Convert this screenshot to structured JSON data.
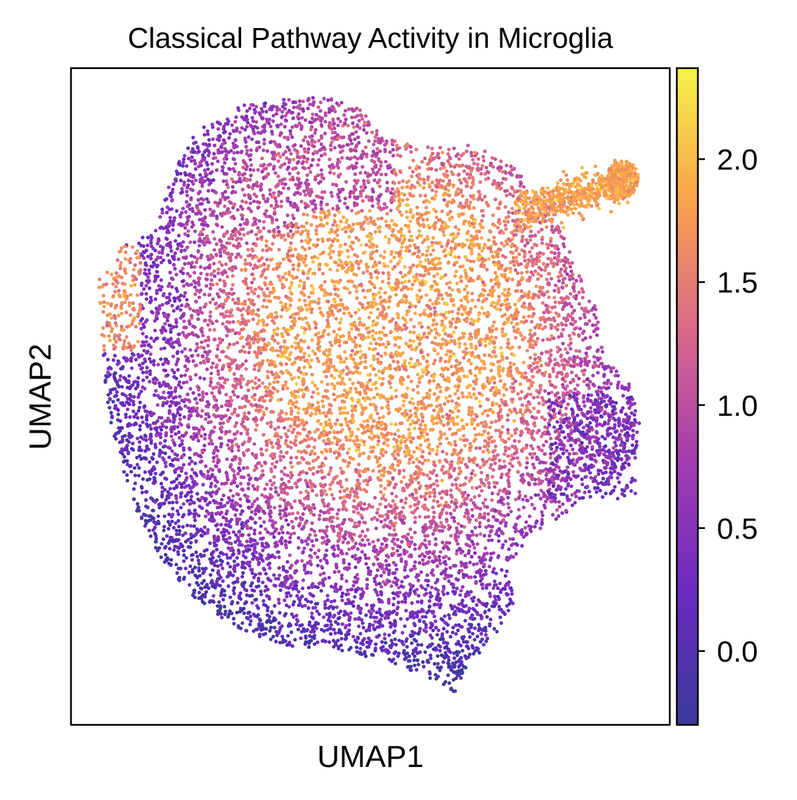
{
  "chart_data": {
    "type": "scatter",
    "title": "Classical Pathway Activity in Microglia",
    "xlabel": "UMAP1",
    "ylabel": "UMAP2",
    "colorbar": {
      "colormap": "plasma",
      "range": [
        -0.3,
        2.37
      ],
      "ticks": [
        0.0,
        0.5,
        1.0,
        1.5,
        2.0
      ],
      "tick_labels": [
        "0.0",
        "0.5",
        "1.0",
        "1.5",
        "2.0"
      ],
      "colors": [
        "#0d0887",
        "#6a00a8",
        "#b12a90",
        "#e16462",
        "#fca636",
        "#f0f921"
      ]
    },
    "axis_ticks_shown": false,
    "grid": false,
    "regions": [
      {
        "region": "central-core",
        "value": 1.75
      },
      {
        "region": "upper-left-lobe",
        "value": 1.0
      },
      {
        "region": "left-edge",
        "value": 1.6
      },
      {
        "region": "right-protrusion",
        "value": 1.8
      },
      {
        "region": "lower-periphery",
        "value": 0.35
      },
      {
        "region": "bottom-tail",
        "value": 0.25
      }
    ]
  }
}
